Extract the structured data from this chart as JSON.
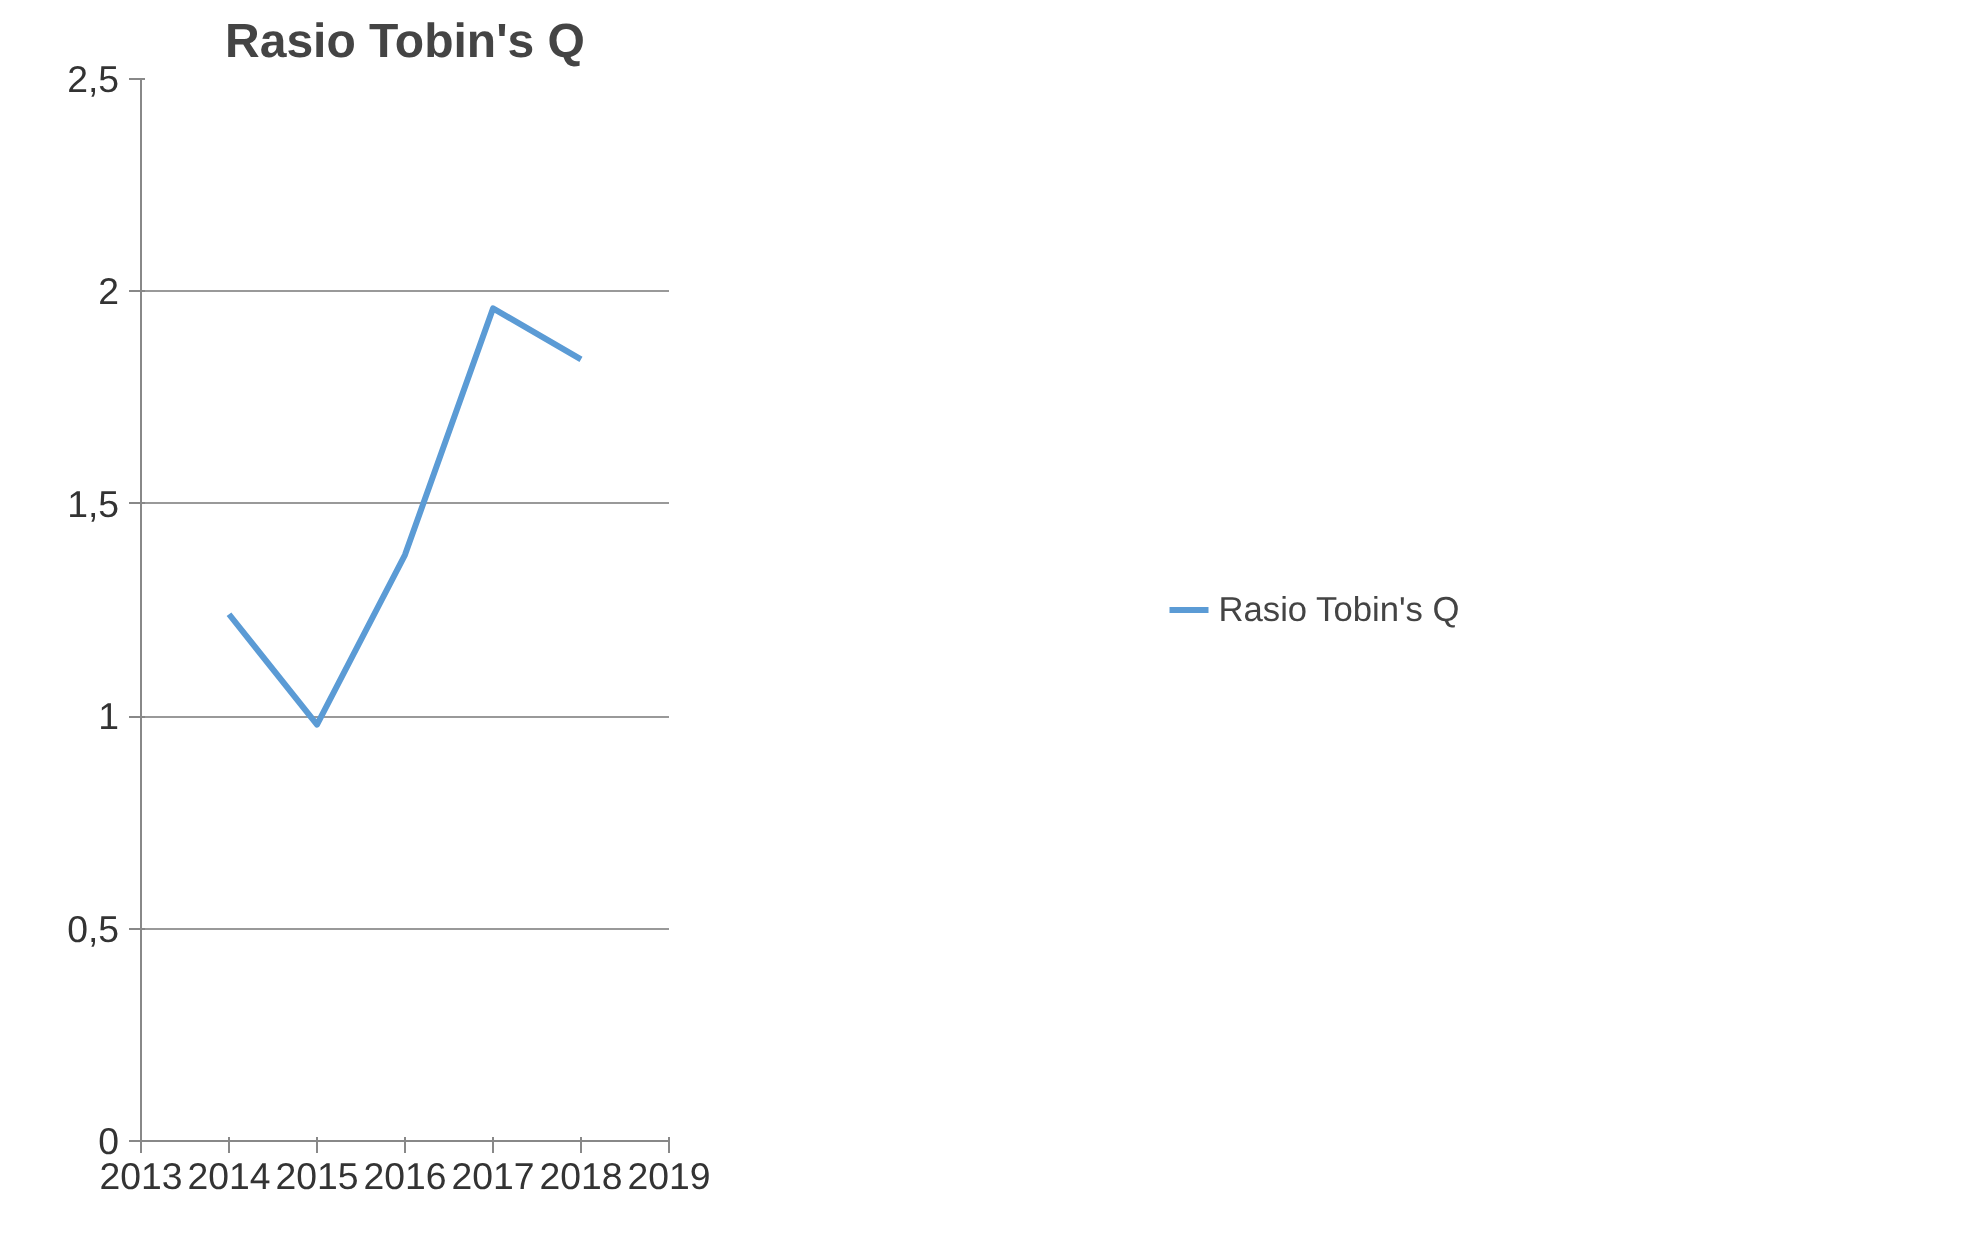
{
  "chart_data": {
    "type": "line",
    "title": "Rasio Tobin's Q",
    "x": [
      2014,
      2015,
      2016,
      2017,
      2018
    ],
    "series": [
      {
        "name": "Rasio Tobin's Q",
        "color": "#5b9bd5",
        "values": [
          1.24,
          0.98,
          1.38,
          1.96,
          1.84
        ]
      }
    ],
    "xlim": [
      2013,
      2019
    ],
    "xticks": [
      2013,
      2014,
      2015,
      2016,
      2017,
      2018,
      2019
    ],
    "ylim": [
      0,
      2.5
    ],
    "yticks": [
      0,
      {
        "value": 0.5,
        "label": "0,5"
      },
      1,
      {
        "value": 1.5,
        "label": "1,5"
      },
      2,
      {
        "value": 2.5,
        "label": "2,5"
      }
    ],
    "grid": "y",
    "legend": "right",
    "line_style": "solid",
    "marker": "none"
  }
}
